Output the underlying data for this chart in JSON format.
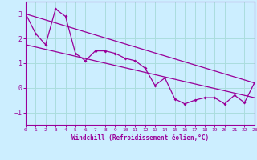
{
  "xlabel": "Windchill (Refroidissement éolien,°C)",
  "ylabel": "",
  "xlim": [
    0,
    23
  ],
  "ylim": [
    -1.5,
    3.5
  ],
  "xticks": [
    0,
    1,
    2,
    3,
    4,
    5,
    6,
    7,
    8,
    9,
    10,
    11,
    12,
    13,
    14,
    15,
    16,
    17,
    18,
    19,
    20,
    21,
    22,
    23
  ],
  "yticks": [
    -1,
    0,
    1,
    2,
    3
  ],
  "color": "#990099",
  "bg_color": "#cceeff",
  "line1_x": [
    0,
    1,
    2,
    3,
    4,
    5,
    6,
    7,
    8,
    9,
    10,
    11,
    12,
    13,
    14,
    15,
    16,
    17,
    18,
    19,
    20,
    21,
    22,
    23
  ],
  "line1_y": [
    3.0,
    2.2,
    1.75,
    3.2,
    2.9,
    1.4,
    1.1,
    1.5,
    1.5,
    1.4,
    1.2,
    1.1,
    0.8,
    0.1,
    0.4,
    -0.45,
    -0.65,
    -0.5,
    -0.4,
    -0.4,
    -0.65,
    -0.3,
    -0.6,
    0.2
  ],
  "line2_x": [
    0,
    23
  ],
  "line2_y": [
    3.0,
    0.2
  ],
  "line3_x": [
    0,
    23
  ],
  "line3_y": [
    1.75,
    -0.4
  ],
  "grid_color": "#aadddd",
  "font_family": "monospace"
}
